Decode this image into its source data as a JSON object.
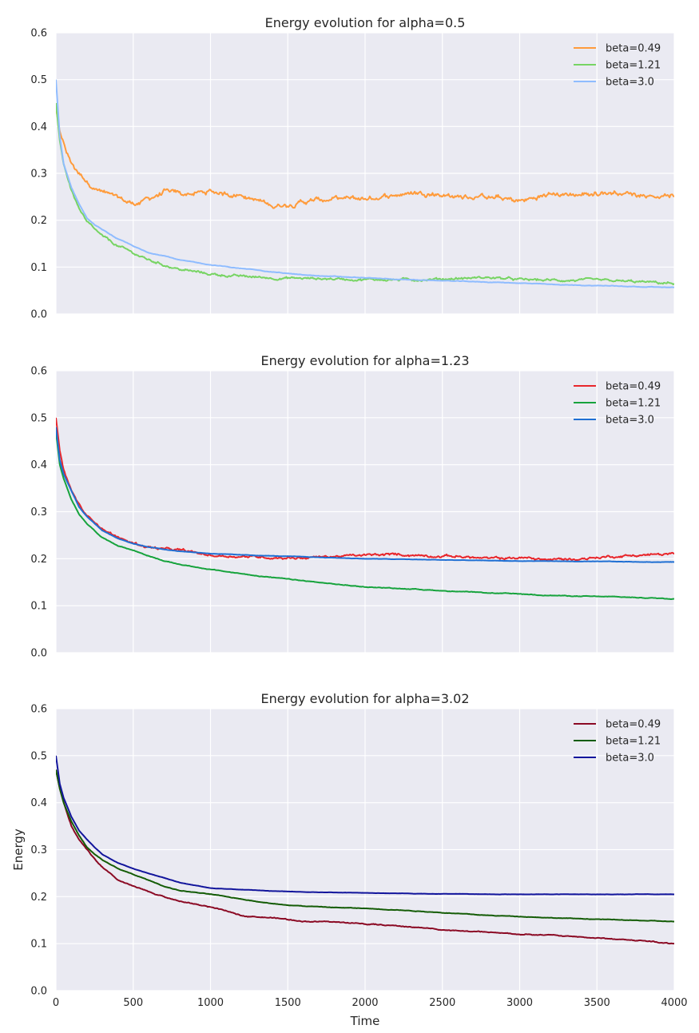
{
  "figure": {
    "xlabel": "Time",
    "ylabel": "Energy"
  },
  "chart_data": [
    {
      "type": "line",
      "title": "Energy evolution for alpha=0.5",
      "xlim": [
        0,
        4000
      ],
      "ylim": [
        0.0,
        0.6
      ],
      "xticks": [
        "0",
        "500",
        "1000",
        "1500",
        "2000",
        "2500",
        "3000",
        "3500",
        "4000"
      ],
      "yticks": [
        "0.0",
        "0.1",
        "0.2",
        "0.3",
        "0.4",
        "0.5",
        "0.6"
      ],
      "show_xticklabels": false,
      "show_xlabel": false,
      "show_ylabel": false,
      "grid": true,
      "legend": "top-right",
      "x": [
        0,
        25,
        50,
        100,
        150,
        200,
        250,
        300,
        400,
        500,
        600,
        700,
        800,
        1000,
        1200,
        1400,
        1600,
        1800,
        2000,
        2200,
        2400,
        2600,
        2800,
        3000,
        3200,
        3400,
        3600,
        3800,
        4000
      ],
      "series": [
        {
          "name": "beta=0.49",
          "color": "#ff9b3b",
          "noise": 0.006,
          "values": [
            0.44,
            0.39,
            0.36,
            0.32,
            0.3,
            0.285,
            0.27,
            0.26,
            0.245,
            0.235,
            0.245,
            0.26,
            0.255,
            0.26,
            0.255,
            0.23,
            0.24,
            0.245,
            0.245,
            0.255,
            0.26,
            0.25,
            0.25,
            0.24,
            0.255,
            0.255,
            0.26,
            0.255,
            0.25
          ]
        },
        {
          "name": "beta=1.21",
          "color": "#77d463",
          "noise": 0.003,
          "values": [
            0.45,
            0.37,
            0.32,
            0.265,
            0.225,
            0.195,
            0.18,
            0.165,
            0.145,
            0.13,
            0.115,
            0.105,
            0.095,
            0.085,
            0.08,
            0.077,
            0.076,
            0.075,
            0.074,
            0.073,
            0.074,
            0.076,
            0.078,
            0.073,
            0.072,
            0.072,
            0.07,
            0.068,
            0.065
          ]
        },
        {
          "name": "beta=3.0",
          "color": "#8fbcff",
          "noise": 0.0007,
          "values": [
            0.5,
            0.38,
            0.32,
            0.27,
            0.235,
            0.205,
            0.19,
            0.18,
            0.16,
            0.145,
            0.13,
            0.125,
            0.115,
            0.105,
            0.097,
            0.09,
            0.083,
            0.08,
            0.077,
            0.074,
            0.072,
            0.07,
            0.068,
            0.066,
            0.063,
            0.061,
            0.06,
            0.058,
            0.057
          ]
        }
      ]
    },
    {
      "type": "line",
      "title": "Energy evolution for alpha=1.23",
      "xlim": [
        0,
        4000
      ],
      "ylim": [
        0.0,
        0.6
      ],
      "xticks": [
        "0",
        "500",
        "1000",
        "1500",
        "2000",
        "2500",
        "3000",
        "3500",
        "4000"
      ],
      "yticks": [
        "0.0",
        "0.1",
        "0.2",
        "0.3",
        "0.4",
        "0.5",
        "0.6"
      ],
      "show_xticklabels": false,
      "show_xlabel": false,
      "show_ylabel": false,
      "grid": true,
      "legend": "top-right",
      "x": [
        0,
        25,
        50,
        100,
        150,
        200,
        250,
        300,
        400,
        500,
        600,
        700,
        800,
        1000,
        1200,
        1400,
        1600,
        1800,
        2000,
        2200,
        2400,
        2600,
        2800,
        3000,
        3200,
        3400,
        3600,
        3800,
        4000
      ],
      "series": [
        {
          "name": "beta=0.49",
          "color": "#e8262b",
          "noise": 0.003,
          "values": [
            0.5,
            0.43,
            0.39,
            0.345,
            0.315,
            0.29,
            0.28,
            0.265,
            0.245,
            0.233,
            0.225,
            0.22,
            0.218,
            0.207,
            0.205,
            0.203,
            0.202,
            0.205,
            0.207,
            0.209,
            0.207,
            0.205,
            0.2,
            0.202,
            0.198,
            0.2,
            0.205,
            0.208,
            0.21
          ]
        },
        {
          "name": "beta=1.21",
          "color": "#17a33d",
          "noise": 0.0008,
          "values": [
            0.47,
            0.4,
            0.37,
            0.325,
            0.295,
            0.275,
            0.26,
            0.245,
            0.228,
            0.218,
            0.206,
            0.195,
            0.188,
            0.177,
            0.168,
            0.16,
            0.153,
            0.146,
            0.14,
            0.137,
            0.134,
            0.13,
            0.127,
            0.125,
            0.122,
            0.12,
            0.119,
            0.117,
            0.115
          ]
        },
        {
          "name": "beta=3.0",
          "color": "#1f6fd3",
          "noise": 0.0004,
          "values": [
            0.48,
            0.41,
            0.38,
            0.345,
            0.31,
            0.29,
            0.275,
            0.26,
            0.243,
            0.232,
            0.225,
            0.22,
            0.216,
            0.211,
            0.208,
            0.206,
            0.204,
            0.202,
            0.2,
            0.199,
            0.198,
            0.197,
            0.196,
            0.195,
            0.195,
            0.194,
            0.194,
            0.193,
            0.193
          ]
        }
      ]
    },
    {
      "type": "line",
      "title": "Energy evolution for alpha=3.02",
      "xlim": [
        0,
        4000
      ],
      "ylim": [
        0.0,
        0.6
      ],
      "xticks": [
        "0",
        "500",
        "1000",
        "1500",
        "2000",
        "2500",
        "3000",
        "3500",
        "4000"
      ],
      "yticks": [
        "0.0",
        "0.1",
        "0.2",
        "0.3",
        "0.4",
        "0.5",
        "0.6"
      ],
      "show_xticklabels": true,
      "show_xlabel": true,
      "show_ylabel": true,
      "grid": true,
      "legend": "top-right",
      "x": [
        0,
        25,
        50,
        100,
        150,
        200,
        250,
        300,
        400,
        500,
        600,
        700,
        800,
        1000,
        1200,
        1400,
        1600,
        1800,
        2000,
        2200,
        2400,
        2600,
        2800,
        3000,
        3200,
        3400,
        3600,
        3800,
        4000
      ],
      "series": [
        {
          "name": "beta=0.49",
          "color": "#8b0a24",
          "noise": 0.0012,
          "values": [
            0.47,
            0.43,
            0.4,
            0.35,
            0.32,
            0.3,
            0.28,
            0.262,
            0.235,
            0.222,
            0.21,
            0.2,
            0.19,
            0.178,
            0.16,
            0.155,
            0.148,
            0.146,
            0.142,
            0.138,
            0.133,
            0.127,
            0.124,
            0.12,
            0.118,
            0.114,
            0.11,
            0.106,
            0.1
          ]
        },
        {
          "name": "beta=1.21",
          "color": "#145c06",
          "noise": 0.0006,
          "values": [
            0.47,
            0.43,
            0.4,
            0.36,
            0.33,
            0.305,
            0.29,
            0.278,
            0.26,
            0.247,
            0.235,
            0.222,
            0.213,
            0.205,
            0.195,
            0.185,
            0.18,
            0.177,
            0.175,
            0.172,
            0.168,
            0.164,
            0.16,
            0.158,
            0.155,
            0.153,
            0.151,
            0.149,
            0.147
          ]
        },
        {
          "name": "beta=3.0",
          "color": "#12159c",
          "noise": 0.0003,
          "values": [
            0.5,
            0.44,
            0.41,
            0.37,
            0.34,
            0.322,
            0.305,
            0.29,
            0.272,
            0.26,
            0.249,
            0.24,
            0.23,
            0.218,
            0.215,
            0.212,
            0.21,
            0.209,
            0.208,
            0.207,
            0.206,
            0.206,
            0.205,
            0.205,
            0.205,
            0.205,
            0.205,
            0.205,
            0.205
          ]
        }
      ]
    }
  ]
}
